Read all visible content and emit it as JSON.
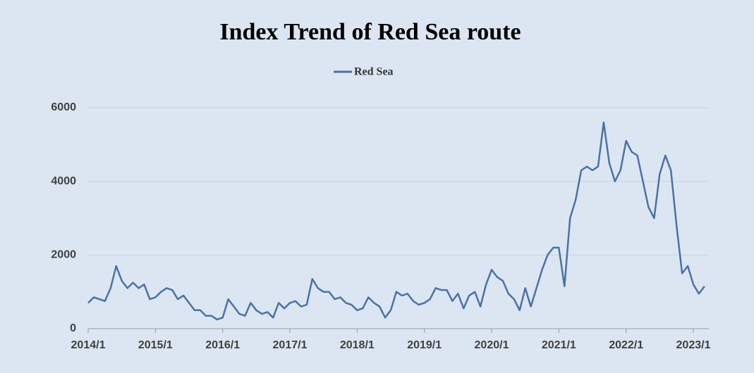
{
  "chart_data": {
    "type": "line",
    "title": "Index Trend of Red Sea route",
    "categories": [
      "2014/1",
      null,
      null,
      null,
      null,
      null,
      null,
      null,
      null,
      null,
      null,
      null,
      "2015/1",
      null,
      null,
      null,
      null,
      null,
      null,
      null,
      null,
      null,
      null,
      null,
      "2016/1",
      null,
      null,
      null,
      null,
      null,
      null,
      null,
      null,
      null,
      null,
      null,
      "2017/1",
      null,
      null,
      null,
      null,
      null,
      null,
      null,
      null,
      null,
      null,
      null,
      "2018/1",
      null,
      null,
      null,
      null,
      null,
      null,
      null,
      null,
      null,
      null,
      null,
      "2019/1",
      null,
      null,
      null,
      null,
      null,
      null,
      null,
      null,
      null,
      null,
      null,
      "2020/1",
      null,
      null,
      null,
      null,
      null,
      null,
      null,
      null,
      null,
      null,
      null,
      "2021/1",
      null,
      null,
      null,
      null,
      null,
      null,
      null,
      null,
      null,
      null,
      null,
      "2022/1",
      null,
      null,
      null,
      null,
      null,
      null,
      null,
      null,
      null,
      null,
      null,
      "2023/1",
      null,
      null
    ],
    "series": [
      {
        "name": "Red Sea",
        "color": "#4a72a6",
        "values": [
          700,
          850,
          800,
          750,
          1100,
          1700,
          1300,
          1100,
          1250,
          1100,
          1200,
          800,
          850,
          1000,
          1100,
          1050,
          800,
          900,
          700,
          500,
          500,
          350,
          350,
          250,
          300,
          800,
          600,
          400,
          350,
          700,
          500,
          400,
          450,
          300,
          700,
          550,
          700,
          750,
          600,
          650,
          1350,
          1100,
          1000,
          1000,
          800,
          850,
          700,
          650,
          500,
          550,
          850,
          700,
          600,
          300,
          500,
          1000,
          900,
          950,
          750,
          650,
          700,
          800,
          1100,
          1050,
          1050,
          750,
          950,
          550,
          900,
          1000,
          600,
          1200,
          1600,
          1400,
          1300,
          950,
          800,
          500,
          1100,
          600,
          1100,
          1600,
          2000,
          2200,
          2200,
          1150,
          3000,
          3500,
          4300,
          4400,
          4300,
          4400,
          5600,
          4500,
          4000,
          4300,
          5100,
          4800,
          4700,
          4000,
          3300,
          3000,
          4200,
          4700,
          4300,
          2800,
          1500,
          1700,
          1200,
          950,
          1150
        ]
      }
    ],
    "ylim": [
      0,
      6000
    ],
    "yticks": [
      0,
      2000,
      4000,
      6000
    ],
    "grid": true,
    "legend": "top"
  }
}
